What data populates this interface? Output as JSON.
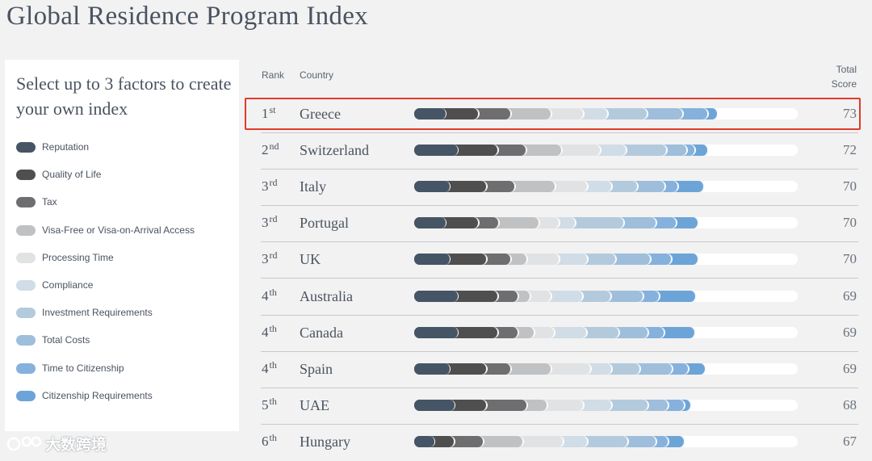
{
  "page_title": "Global Residence Program Index",
  "panel": {
    "prompt": "Select up to 3 factors to create your own index",
    "factors": [
      {
        "label": "Reputation",
        "color": "#455565"
      },
      {
        "label": "Quality of Life",
        "color": "#4f4f50"
      },
      {
        "label": "Tax",
        "color": "#6e6e70"
      },
      {
        "label": "Visa-Free or Visa-on-Arrival Access",
        "color": "#bfc1c3"
      },
      {
        "label": "Processing Time",
        "color": "#e1e2e3"
      },
      {
        "label": "Compliance",
        "color": "#d0dce6"
      },
      {
        "label": "Investment Requirements",
        "color": "#b3cadd"
      },
      {
        "label": "Total Costs",
        "color": "#9ebedb"
      },
      {
        "label": "Time to Citizenship",
        "color": "#85b1dc"
      },
      {
        "label": "Citizenship Requirements",
        "color": "#6da4d8"
      }
    ]
  },
  "table": {
    "col_rank": "Rank",
    "col_country": "Country",
    "col_score_line1": "Total",
    "col_score_line2": "Score",
    "rows": [
      {
        "rank": "1",
        "suffix": "st",
        "country": "Greece",
        "score": "73",
        "segments": [
          8.2,
          8.6,
          8.4,
          10.5,
          8.6,
          6.3,
          10.2,
          9.2,
          6.6,
          2.6
        ]
      },
      {
        "rank": "2",
        "suffix": "nd",
        "country": "Switzerland",
        "score": "72",
        "segments": [
          11.4,
          10.5,
          7.4,
          9.2,
          10.2,
          6.6,
          10.5,
          5.3,
          2.1,
          3.4
        ]
      },
      {
        "rank": "3",
        "suffix": "rd",
        "country": "Italy",
        "score": "70",
        "segments": [
          9.2,
          9.7,
          7.4,
          10.5,
          8.4,
          6.3,
          6.8,
          7.1,
          3.4,
          6.8
        ]
      },
      {
        "rank": "3",
        "suffix": "rd",
        "country": "Portugal",
        "score": "70",
        "segments": [
          8.2,
          8.6,
          5.3,
          10.5,
          5.3,
          4.2,
          12.6,
          8.4,
          5.3,
          5.7
        ]
      },
      {
        "rank": "3",
        "suffix": "rd",
        "country": "UK",
        "score": "70",
        "segments": [
          9.2,
          9.7,
          6.3,
          4.2,
          8.4,
          7.4,
          7.4,
          9.0,
          5.5,
          7.1
        ]
      },
      {
        "rank": "4",
        "suffix": "th",
        "country": "Australia",
        "score": "69",
        "segments": [
          11.4,
          10.5,
          5.3,
          3.2,
          5.3,
          8.2,
          7.4,
          8.4,
          4.2,
          9.5
        ]
      },
      {
        "rank": "4",
        "suffix": "th",
        "country": "Canada",
        "score": "69",
        "segments": [
          11.4,
          10.5,
          5.3,
          4.2,
          5.3,
          8.4,
          8.4,
          7.6,
          4.2,
          8.0
        ]
      },
      {
        "rank": "4",
        "suffix": "th",
        "country": "Spain",
        "score": "69",
        "segments": [
          9.2,
          9.7,
          6.3,
          10.5,
          10.5,
          5.3,
          7.4,
          8.4,
          4.2,
          4.6
        ]
      },
      {
        "rank": "5",
        "suffix": "th",
        "country": "UAE",
        "score": "68",
        "segments": [
          10.5,
          8.4,
          10.5,
          5.3,
          9.5,
          7.4,
          9.5,
          5.3,
          4.2,
          1.7
        ]
      },
      {
        "rank": "6",
        "suffix": "th",
        "country": "Hungary",
        "score": "67",
        "segments": [
          5.3,
          5.3,
          7.4,
          10.5,
          10.5,
          6.3,
          10.5,
          7.4,
          3.2,
          4.2
        ]
      }
    ]
  },
  "watermark": "大数跨境"
}
